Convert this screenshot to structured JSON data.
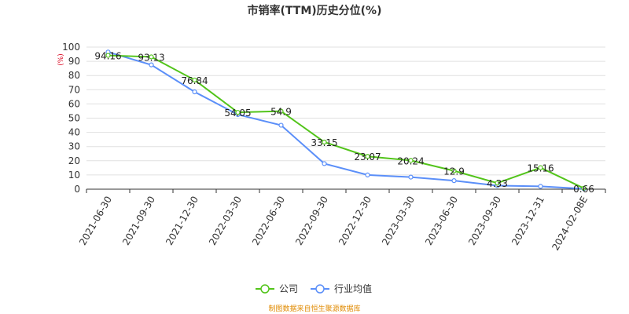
{
  "chart_data": {
    "type": "line",
    "title": "市销率(TTM)历史分位(%)",
    "y_unit": "(%)",
    "categories": [
      "2021-06-30",
      "2021-09-30",
      "2021-12-30",
      "2022-03-30",
      "2022-06-30",
      "2022-09-30",
      "2022-12-30",
      "2023-03-30",
      "2023-06-30",
      "2023-09-30",
      "2023-12-31",
      "2024-02-08E"
    ],
    "ylim": [
      0,
      100
    ],
    "yticks": [
      0,
      10,
      20,
      30,
      40,
      50,
      60,
      70,
      80,
      90,
      100
    ],
    "grid": true,
    "legend_position": "bottom-center",
    "series": [
      {
        "name": "公司",
        "color": "#52c41a",
        "values": [
          94.16,
          93.13,
          76.84,
          54.05,
          54.9,
          33.15,
          23.07,
          20.24,
          12.9,
          4.33,
          15.16,
          0.66
        ],
        "show_labels": true
      },
      {
        "name": "行业均值",
        "color": "#5b8ff9",
        "values": [
          96.5,
          87.5,
          68.5,
          52.5,
          45.0,
          18.0,
          10.0,
          8.5,
          6.0,
          2.5,
          2.0,
          0.3
        ],
        "show_labels": false
      }
    ]
  },
  "source_text": "制图数据来自恒生聚源数据库"
}
